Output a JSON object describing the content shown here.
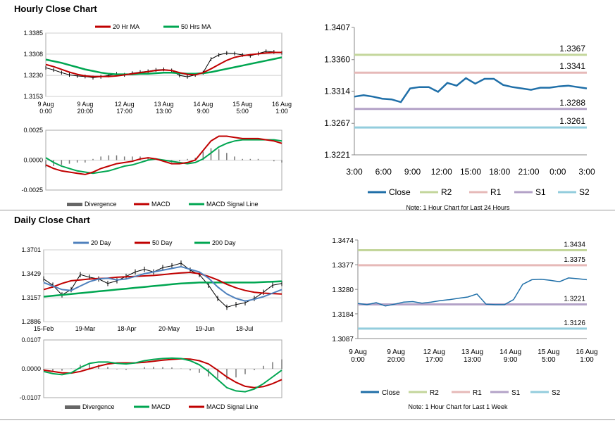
{
  "sections": {
    "hourly_title": "Hourly Close Chart",
    "daily_title": "Daily Close Chart"
  },
  "chart_data": [
    {
      "id": "hourly_price",
      "type": "line",
      "title": "",
      "legend": [
        "20 Hr MA",
        "50 Hrs MA"
      ],
      "legend_colors": [
        "#c00000",
        "#00a651"
      ],
      "yticks": [
        "1.3385",
        "1.3308",
        "1.3230",
        "1.3153"
      ],
      "ylim": [
        1.3153,
        1.3385
      ],
      "xticks": [
        "9 Aug\n0:00",
        "9 Aug\n20:00",
        "12 Aug\n17:00",
        "13 Aug\n13:00",
        "14 Aug\n9:00",
        "15 Aug\n5:00",
        "16 Aug\n1:00"
      ],
      "series": [
        {
          "name": "Close",
          "values": [
            1.3258,
            1.325,
            1.324,
            1.3232,
            1.3228,
            1.3226,
            1.3222,
            1.3225,
            1.323,
            1.3235,
            1.3232,
            1.3238,
            1.3242,
            1.3245,
            1.325,
            1.3252,
            1.3248,
            1.323,
            1.3225,
            1.3232,
            1.324,
            1.329,
            1.3305,
            1.3312,
            1.331,
            1.3305,
            1.3302,
            1.331,
            1.3318,
            1.3316,
            1.3313
          ]
        },
        {
          "name": "20 Hr MA",
          "values": [
            1.327,
            1.3262,
            1.3252,
            1.3242,
            1.3234,
            1.3228,
            1.3226,
            1.3226,
            1.3226,
            1.3228,
            1.3232,
            1.3236,
            1.324,
            1.3244,
            1.3248,
            1.325,
            1.3248,
            1.324,
            1.3234,
            1.3232,
            1.324,
            1.3254,
            1.327,
            1.3285,
            1.3296,
            1.3302,
            1.3306,
            1.3309,
            1.3312,
            1.3314,
            1.3314
          ]
        },
        {
          "name": "50 Hrs MA",
          "values": [
            1.3288,
            1.3282,
            1.3276,
            1.3268,
            1.326,
            1.3252,
            1.3246,
            1.324,
            1.3236,
            1.3234,
            1.3234,
            1.3234,
            1.3236,
            1.3236,
            1.3238,
            1.324,
            1.324,
            1.3238,
            1.3236,
            1.3236,
            1.3238,
            1.3242,
            1.3248,
            1.3254,
            1.326,
            1.3266,
            1.3272,
            1.3278,
            1.3284,
            1.329,
            1.3296
          ]
        }
      ]
    },
    {
      "id": "hourly_macd",
      "type": "line",
      "legend": [
        "Divergence",
        "MACD",
        "MACD Signal Line"
      ],
      "legend_colors": [
        "#666666",
        "#c00000",
        "#00a651"
      ],
      "yticks": [
        "0.0025",
        "0.0000",
        "-0.0025"
      ],
      "ylim": [
        -0.0025,
        0.0025
      ],
      "series": [
        {
          "name": "MACD",
          "values": [
            -0.0004,
            -0.0007,
            -0.0009,
            -0.001,
            -0.0011,
            -0.0012,
            -0.001,
            -0.0007,
            -0.0005,
            -0.0003,
            -0.0002,
            -0.0001,
            0.0001,
            0.0002,
            0.0001,
            -0.0001,
            -0.0003,
            -0.0003,
            -0.0002,
            0.0,
            0.0008,
            0.0016,
            0.002,
            0.002,
            0.0019,
            0.0018,
            0.0018,
            0.0018,
            0.0017,
            0.0016,
            0.0014
          ]
        },
        {
          "name": "MACD Signal Line",
          "values": [
            0.0002,
            -0.0002,
            -0.0005,
            -0.0007,
            -0.0009,
            -0.001,
            -0.0011,
            -0.001,
            -0.0009,
            -0.0007,
            -0.0005,
            -0.0004,
            -0.0002,
            0.0,
            0.0001,
            0.0,
            -0.0001,
            -0.0002,
            -0.0003,
            -0.0002,
            0.0001,
            0.0006,
            0.0011,
            0.0014,
            0.0016,
            0.0017,
            0.0017,
            0.0017,
            0.0017,
            0.0017,
            0.0016
          ]
        },
        {
          "name": "Divergence",
          "values": [
            -0.0006,
            -0.0005,
            -0.0004,
            -0.0003,
            -0.0002,
            -0.0002,
            0.0001,
            0.0003,
            0.0004,
            0.0004,
            0.0003,
            0.0003,
            0.0003,
            0.0002,
            0.0,
            -0.0001,
            -0.0002,
            -0.0001,
            0.0001,
            0.0002,
            0.0007,
            0.001,
            0.0009,
            0.0006,
            0.0003,
            0.0001,
            0.0001,
            0.0001,
            0.0,
            -0.0001,
            -0.0002
          ]
        }
      ]
    },
    {
      "id": "hourly_levels",
      "type": "line",
      "ylim": [
        1.3221,
        1.3407
      ],
      "yticks": [
        "1.3407",
        "1.3360",
        "1.3314",
        "1.3267",
        "1.3221"
      ],
      "xticks": [
        "3:00",
        "6:00",
        "9:00",
        "12:00",
        "15:00",
        "18:00",
        "21:00",
        "0:00",
        "3:00"
      ],
      "levels": [
        {
          "name": "R2",
          "value": 1.3367,
          "label": "1.3367",
          "color": "#c3d69b"
        },
        {
          "name": "R1",
          "value": 1.3341,
          "label": "1.3341",
          "color": "#e6b9b8"
        },
        {
          "name": "S1",
          "value": 1.3288,
          "label": "1.3288",
          "color": "#b3a2c7"
        },
        {
          "name": "S2",
          "value": 1.3261,
          "label": "1.3261",
          "color": "#93cddd"
        }
      ],
      "close": [
        1.3306,
        1.3308,
        1.3306,
        1.3303,
        1.3302,
        1.3298,
        1.3318,
        1.332,
        1.332,
        1.3313,
        1.3326,
        1.3322,
        1.3333,
        1.3325,
        1.3332,
        1.3332,
        1.3323,
        1.332,
        1.3318,
        1.3316,
        1.3319,
        1.3319,
        1.3321,
        1.3322,
        1.332,
        1.3318
      ],
      "close_color": "#1f6fa8",
      "legend": [
        "Close",
        "R2",
        "R1",
        "S1",
        "S2"
      ],
      "note": "Note: 1 Hour Chart for Last 24 Hours"
    },
    {
      "id": "daily_price",
      "type": "line",
      "legend": [
        "20 Day",
        "50 Day",
        "200 Day"
      ],
      "legend_colors": [
        "#4f81bd",
        "#c00000",
        "#00a651"
      ],
      "yticks": [
        "1.3701",
        "1.3429",
        "1.3157",
        "1.2886"
      ],
      "ylim": [
        1.2886,
        1.3701
      ],
      "xticks": [
        "15-Feb",
        "19-Mar",
        "18-Apr",
        "20-May",
        "19-Jun",
        "18-Jul"
      ],
      "series": [
        {
          "name": "Close",
          "values": [
            1.337,
            1.33,
            1.319,
            1.325,
            1.342,
            1.339,
            1.337,
            1.332,
            1.335,
            1.34,
            1.345,
            1.348,
            1.345,
            1.35,
            1.352,
            1.355,
            1.347,
            1.342,
            1.33,
            1.315,
            1.305,
            1.308,
            1.31,
            1.315,
            1.322,
            1.33,
            1.332
          ]
        },
        {
          "name": "20 Day",
          "values": [
            1.333,
            1.329,
            1.325,
            1.324,
            1.329,
            1.334,
            1.337,
            1.338,
            1.336,
            1.337,
            1.34,
            1.343,
            1.345,
            1.347,
            1.349,
            1.351,
            1.348,
            1.345,
            1.338,
            1.328,
            1.32,
            1.315,
            1.312,
            1.314,
            1.317,
            1.321,
            1.325
          ]
        },
        {
          "name": "50 Day",
          "values": [
            1.325,
            1.328,
            1.332,
            1.335,
            1.336,
            1.337,
            1.3375,
            1.338,
            1.339,
            1.3395,
            1.34,
            1.3405,
            1.341,
            1.342,
            1.343,
            1.344,
            1.3445,
            1.343,
            1.34,
            1.336,
            1.331,
            1.327,
            1.324,
            1.322,
            1.321,
            1.3205,
            1.32
          ]
        },
        {
          "name": "200 Day",
          "values": [
            1.317,
            1.318,
            1.319,
            1.32,
            1.321,
            1.322,
            1.323,
            1.324,
            1.325,
            1.326,
            1.327,
            1.328,
            1.329,
            1.33,
            1.331,
            1.332,
            1.3325,
            1.333,
            1.333,
            1.333,
            1.333,
            1.333,
            1.333,
            1.333,
            1.3335,
            1.334,
            1.3345
          ]
        }
      ]
    },
    {
      "id": "daily_macd",
      "type": "line",
      "legend": [
        "Divergence",
        "MACD",
        "MACD Signal Line"
      ],
      "legend_colors": [
        "#666666",
        "#00a651",
        "#c00000"
      ],
      "yticks": [
        "0.0107",
        "0.0000",
        "-0.0107"
      ],
      "ylim": [
        -0.0107,
        0.0107
      ],
      "series": [
        {
          "name": "MACD",
          "values": [
            -0.001,
            -0.0018,
            -0.0022,
            -0.0015,
            0.0005,
            0.002,
            0.0025,
            0.0025,
            0.002,
            0.0018,
            0.0022,
            0.003,
            0.0035,
            0.0038,
            0.004,
            0.0038,
            0.003,
            0.0015,
            -0.001,
            -0.004,
            -0.007,
            -0.0082,
            -0.0085,
            -0.0075,
            -0.0055,
            -0.003,
            -0.0005
          ]
        },
        {
          "name": "MACD Signal Line",
          "values": [
            -0.0005,
            -0.001,
            -0.0015,
            -0.0016,
            -0.001,
            0.0,
            0.001,
            0.0018,
            0.0022,
            0.0022,
            0.0022,
            0.0024,
            0.0028,
            0.0032,
            0.0035,
            0.0037,
            0.0036,
            0.003,
            0.0018,
            -0.0005,
            -0.003,
            -0.005,
            -0.0065,
            -0.007,
            -0.0066,
            -0.0055,
            -0.004
          ]
        },
        {
          "name": "Divergence",
          "values": [
            -0.0005,
            -0.0008,
            -0.0007,
            0.0001,
            0.0015,
            0.002,
            0.0015,
            0.0007,
            -0.0002,
            -0.0004,
            0.0,
            0.0006,
            0.0007,
            0.0006,
            0.0005,
            0.0001,
            -0.0006,
            -0.0015,
            -0.0028,
            -0.0035,
            -0.004,
            -0.0032,
            -0.002,
            -0.0005,
            0.0011,
            0.0025,
            0.0035
          ]
        }
      ]
    },
    {
      "id": "weekly_levels",
      "type": "line",
      "ylim": [
        1.3087,
        1.3474
      ],
      "yticks": [
        "1.3474",
        "1.3377",
        "1.3280",
        "1.3184",
        "1.3087"
      ],
      "xticks": [
        "9 Aug\n0:00",
        "9 Aug\n20:00",
        "12 Aug\n17:00",
        "13 Aug\n13:00",
        "14 Aug\n9:00",
        "15 Aug\n5:00",
        "16 Aug\n1:00"
      ],
      "levels": [
        {
          "name": "R2",
          "value": 1.3434,
          "label": "1.3434",
          "color": "#c3d69b"
        },
        {
          "name": "R1",
          "value": 1.3375,
          "label": "1.3375",
          "color": "#e6b9b8"
        },
        {
          "name": "S1",
          "value": 1.3221,
          "label": "1.3221",
          "color": "#b3a2c7"
        },
        {
          "name": "S2",
          "value": 1.3126,
          "label": "1.3126",
          "color": "#93cddd"
        }
      ],
      "close": [
        1.3225,
        1.322,
        1.3228,
        1.3215,
        1.3222,
        1.323,
        1.3232,
        1.3226,
        1.323,
        1.3236,
        1.324,
        1.3245,
        1.325,
        1.3262,
        1.3222,
        1.322,
        1.322,
        1.324,
        1.33,
        1.3318,
        1.332,
        1.3316,
        1.331,
        1.3325,
        1.3322,
        1.3318
      ],
      "close_color": "#1f6fa8",
      "legend": [
        "Close",
        "R2",
        "R1",
        "S1",
        "S2"
      ],
      "note": "Note: 1 Hour Chart for Last 1 Week"
    }
  ]
}
